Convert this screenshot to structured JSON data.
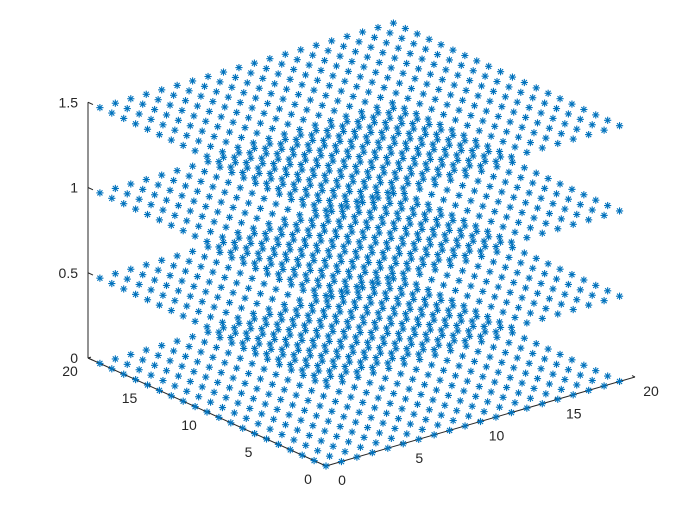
{
  "chart_data": {
    "type": "scatter3",
    "title": "",
    "xlabel": "",
    "ylabel": "",
    "zlabel": "",
    "marker": "*",
    "color": "#0072BD",
    "grid": false,
    "view": "default 3-D (azimuth -37.5, elevation 30)",
    "x": {
      "min": 0,
      "max": 19,
      "step": 1,
      "lim": [
        0,
        20
      ],
      "ticks": [
        "0",
        "5",
        "10",
        "15",
        "20"
      ]
    },
    "y": {
      "min": 0,
      "max": 19,
      "step": 1,
      "lim": [
        0,
        20
      ],
      "ticks": [
        "0",
        "5",
        "10",
        "15",
        "20"
      ]
    },
    "z": {
      "levels": [
        0,
        0.5,
        1,
        1.5
      ],
      "lim": [
        0,
        1.5
      ],
      "ticks": [
        "0",
        "0.5",
        "1",
        "1.5"
      ]
    },
    "description_of_points": "A 20 x 20 grid of points (x = 0..19, y = 0..19) repeated at each z level"
  }
}
